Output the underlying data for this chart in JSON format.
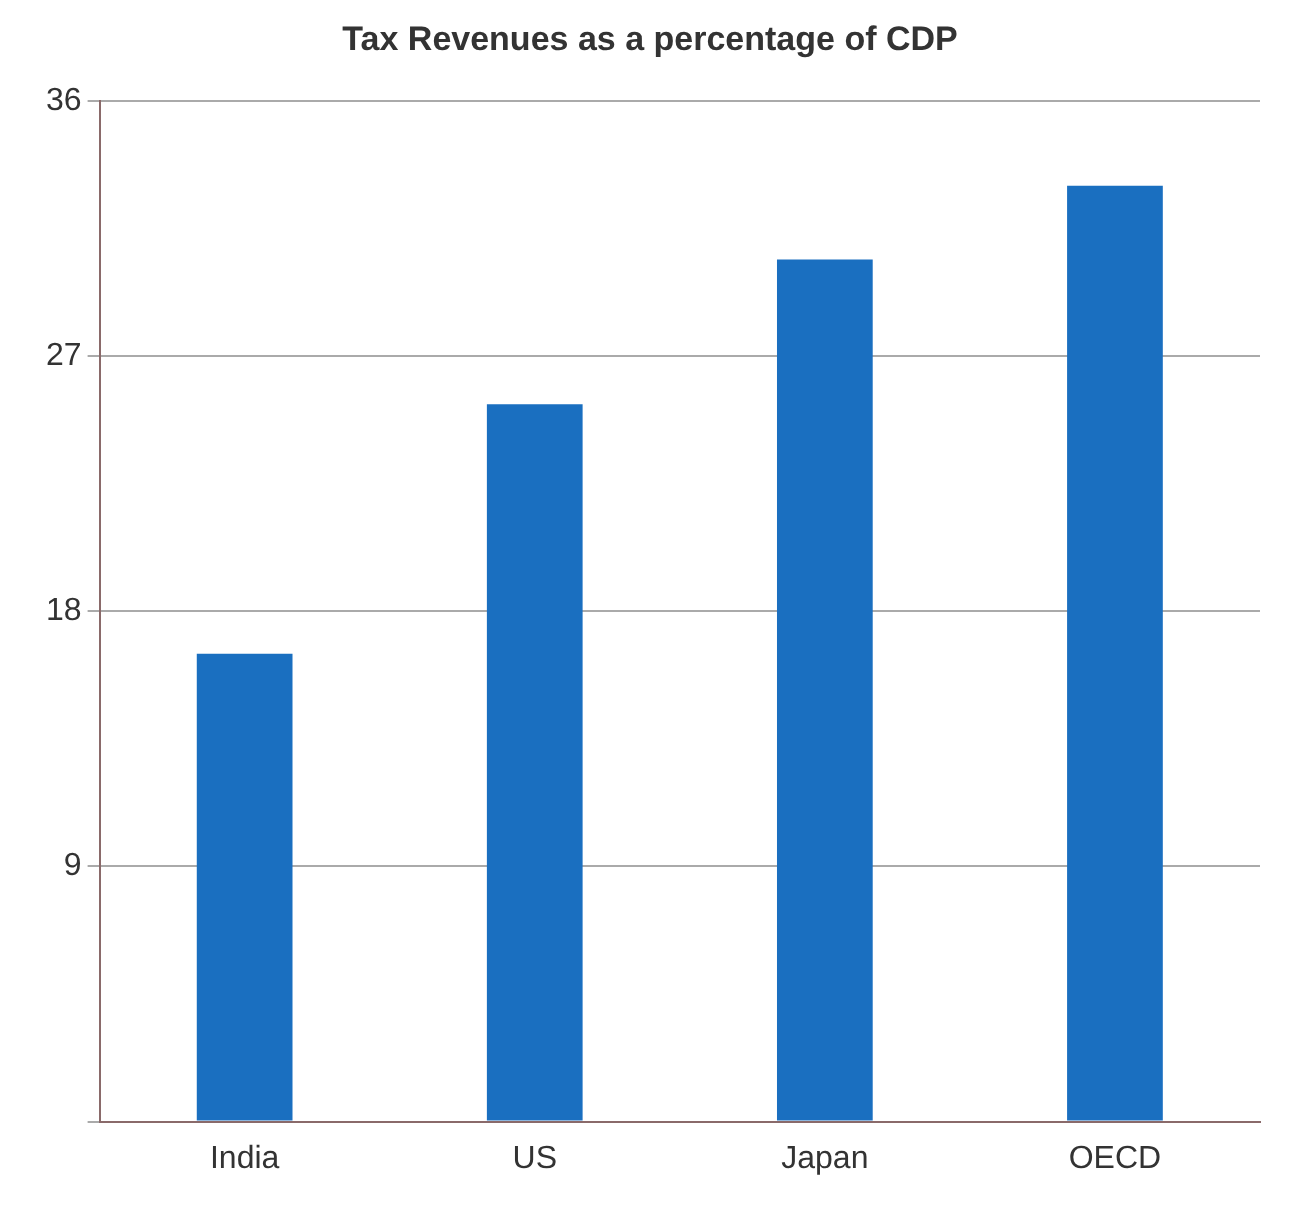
{
  "chart_data": {
    "type": "bar",
    "title": "Tax Revenues as a percentage of CDP",
    "categories": [
      "India",
      "US",
      "Japan",
      "OECD"
    ],
    "values": [
      16.5,
      25.3,
      30.4,
      33.0
    ],
    "color": "#1a6fc0",
    "ylim": [
      0,
      36
    ],
    "yticks": [
      {
        "value": 0,
        "label": null
      },
      9,
      18,
      27,
      36
    ],
    "grid": "y"
  }
}
